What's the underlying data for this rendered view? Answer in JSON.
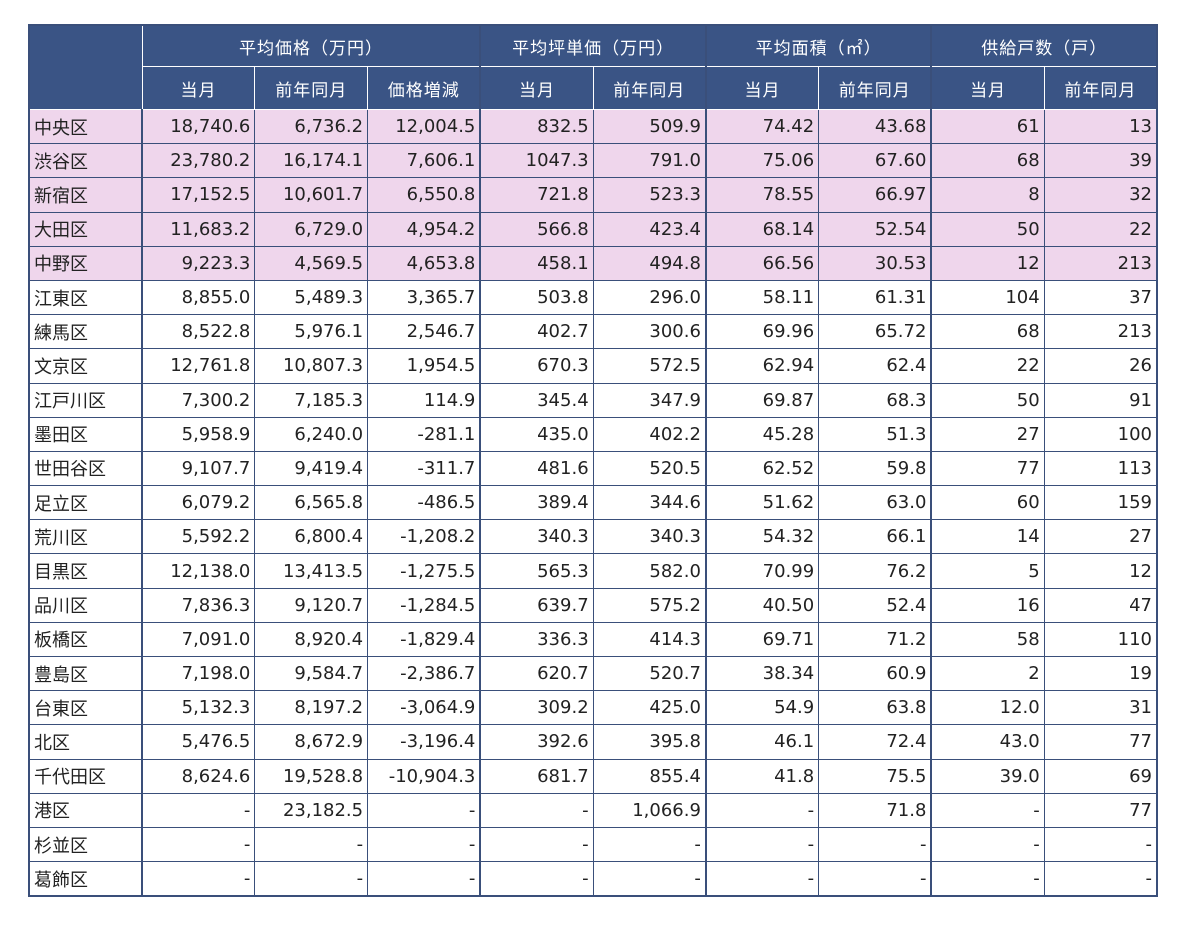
{
  "header": {
    "groups": [
      "平均価格（万円）",
      "平均坪単価（万円）",
      "平均面積（㎡）",
      "供給戸数（戸）"
    ],
    "sub": {
      "price": [
        "当月",
        "前年同月",
        "価格増減"
      ],
      "tsubo": [
        "当月",
        "前年同月"
      ],
      "area": [
        "当月",
        "前年同月"
      ],
      "supply": [
        "当月",
        "前年同月"
      ]
    }
  },
  "highlight_color": "#efd6ec",
  "header_color": "#3a5485",
  "rows": [
    {
      "name": "中央区",
      "v": [
        "18,740.6",
        "6,736.2",
        "12,004.5",
        "832.5",
        "509.9",
        "74.42",
        "43.68",
        "61",
        "13"
      ],
      "hl": true
    },
    {
      "name": "渋谷区",
      "v": [
        "23,780.2",
        "16,174.1",
        "7,606.1",
        "1047.3",
        "791.0",
        "75.06",
        "67.60",
        "68",
        "39"
      ],
      "hl": true
    },
    {
      "name": "新宿区",
      "v": [
        "17,152.5",
        "10,601.7",
        "6,550.8",
        "721.8",
        "523.3",
        "78.55",
        "66.97",
        "8",
        "32"
      ],
      "hl": true
    },
    {
      "name": "大田区",
      "v": [
        "11,683.2",
        "6,729.0",
        "4,954.2",
        "566.8",
        "423.4",
        "68.14",
        "52.54",
        "50",
        "22"
      ],
      "hl": true
    },
    {
      "name": "中野区",
      "v": [
        "9,223.3",
        "4,569.5",
        "4,653.8",
        "458.1",
        "494.8",
        "66.56",
        "30.53",
        "12",
        "213"
      ],
      "hl": true
    },
    {
      "name": "江東区",
      "v": [
        "8,855.0",
        "5,489.3",
        "3,365.7",
        "503.8",
        "296.0",
        "58.11",
        "61.31",
        "104",
        "37"
      ]
    },
    {
      "name": "練馬区",
      "v": [
        "8,522.8",
        "5,976.1",
        "2,546.7",
        "402.7",
        "300.6",
        "69.96",
        "65.72",
        "68",
        "213"
      ]
    },
    {
      "name": "文京区",
      "v": [
        "12,761.8",
        "10,807.3",
        "1,954.5",
        "670.3",
        "572.5",
        "62.94",
        "62.4",
        "22",
        "26"
      ]
    },
    {
      "name": "江戸川区",
      "v": [
        "7,300.2",
        "7,185.3",
        "114.9",
        "345.4",
        "347.9",
        "69.87",
        "68.3",
        "50",
        "91"
      ]
    },
    {
      "name": "墨田区",
      "v": [
        "5,958.9",
        "6,240.0",
        "-281.1",
        "435.0",
        "402.2",
        "45.28",
        "51.3",
        "27",
        "100"
      ]
    },
    {
      "name": "世田谷区",
      "v": [
        "9,107.7",
        "9,419.4",
        "-311.7",
        "481.6",
        "520.5",
        "62.52",
        "59.8",
        "77",
        "113"
      ]
    },
    {
      "name": "足立区",
      "v": [
        "6,079.2",
        "6,565.8",
        "-486.5",
        "389.4",
        "344.6",
        "51.62",
        "63.0",
        "60",
        "159"
      ]
    },
    {
      "name": "荒川区",
      "v": [
        "5,592.2",
        "6,800.4",
        "-1,208.2",
        "340.3",
        "340.3",
        "54.32",
        "66.1",
        "14",
        "27"
      ]
    },
    {
      "name": "目黒区",
      "v": [
        "12,138.0",
        "13,413.5",
        "-1,275.5",
        "565.3",
        "582.0",
        "70.99",
        "76.2",
        "5",
        "12"
      ]
    },
    {
      "name": "品川区",
      "v": [
        "7,836.3",
        "9,120.7",
        "-1,284.5",
        "639.7",
        "575.2",
        "40.50",
        "52.4",
        "16",
        "47"
      ]
    },
    {
      "name": "板橋区",
      "v": [
        "7,091.0",
        "8,920.4",
        "-1,829.4",
        "336.3",
        "414.3",
        "69.71",
        "71.2",
        "58",
        "110"
      ]
    },
    {
      "name": "豊島区",
      "v": [
        "7,198.0",
        "9,584.7",
        "-2,386.7",
        "620.7",
        "520.7",
        "38.34",
        "60.9",
        "2",
        "19"
      ]
    },
    {
      "name": "台東区",
      "v": [
        "5,132.3",
        "8,197.2",
        "-3,064.9",
        "309.2",
        "425.0",
        "54.9",
        "63.8",
        "12.0",
        "31"
      ]
    },
    {
      "name": "北区",
      "v": [
        "5,476.5",
        "8,672.9",
        "-3,196.4",
        "392.6",
        "395.8",
        "46.1",
        "72.4",
        "43.0",
        "77"
      ]
    },
    {
      "name": "千代田区",
      "v": [
        "8,624.6",
        "19,528.8",
        "-10,904.3",
        "681.7",
        "855.4",
        "41.8",
        "75.5",
        "39.0",
        "69"
      ]
    },
    {
      "name": "港区",
      "v": [
        "-",
        "23,182.5",
        "-",
        "-",
        "1,066.9",
        "-",
        "71.8",
        "-",
        "77"
      ]
    },
    {
      "name": "杉並区",
      "v": [
        "-",
        "-",
        "-",
        "-",
        "-",
        "-",
        "-",
        "-",
        "-"
      ]
    },
    {
      "name": "葛飾区",
      "v": [
        "-",
        "-",
        "-",
        "-",
        "-",
        "-",
        "-",
        "-",
        "-"
      ]
    }
  ]
}
